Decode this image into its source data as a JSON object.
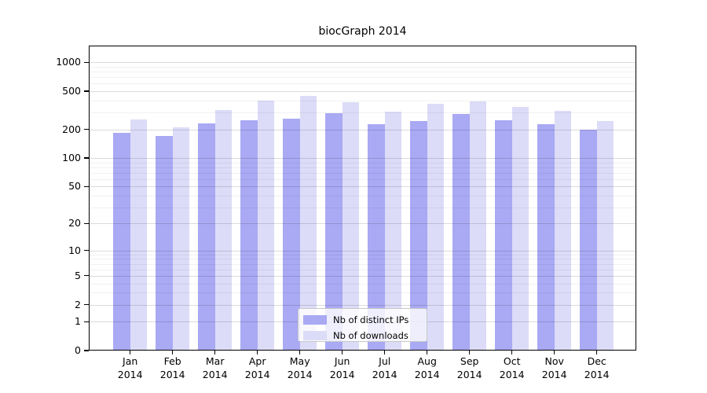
{
  "chart_data": {
    "type": "bar",
    "title": "biocGraph 2014",
    "yscale": "log10(value+1)",
    "categories": [
      "Jan 2014",
      "Feb 2014",
      "Mar 2014",
      "Apr 2014",
      "May 2014",
      "Jun 2014",
      "Jul 2014",
      "Aug 2014",
      "Sep 2014",
      "Oct 2014",
      "Nov 2014",
      "Dec 2014"
    ],
    "series": [
      {
        "name": "Nb of distinct IPs",
        "color": "#a9a9f4",
        "values": [
          185,
          172,
          230,
          250,
          258,
          297,
          228,
          244,
          288,
          250,
          225,
          197
        ]
      },
      {
        "name": "Nb of downloads",
        "color": "#dcdcf8",
        "values": [
          256,
          208,
          318,
          400,
          450,
          384,
          308,
          372,
          393,
          341,
          313,
          245
        ]
      }
    ],
    "yticks": [
      0,
      1,
      2,
      5,
      10,
      20,
      50,
      100,
      200,
      500,
      1000
    ],
    "ylim": [
      0,
      1470
    ],
    "xlabel": "",
    "ylabel": "",
    "grid": "horizontal major and minor",
    "legend_position": "lower center"
  }
}
